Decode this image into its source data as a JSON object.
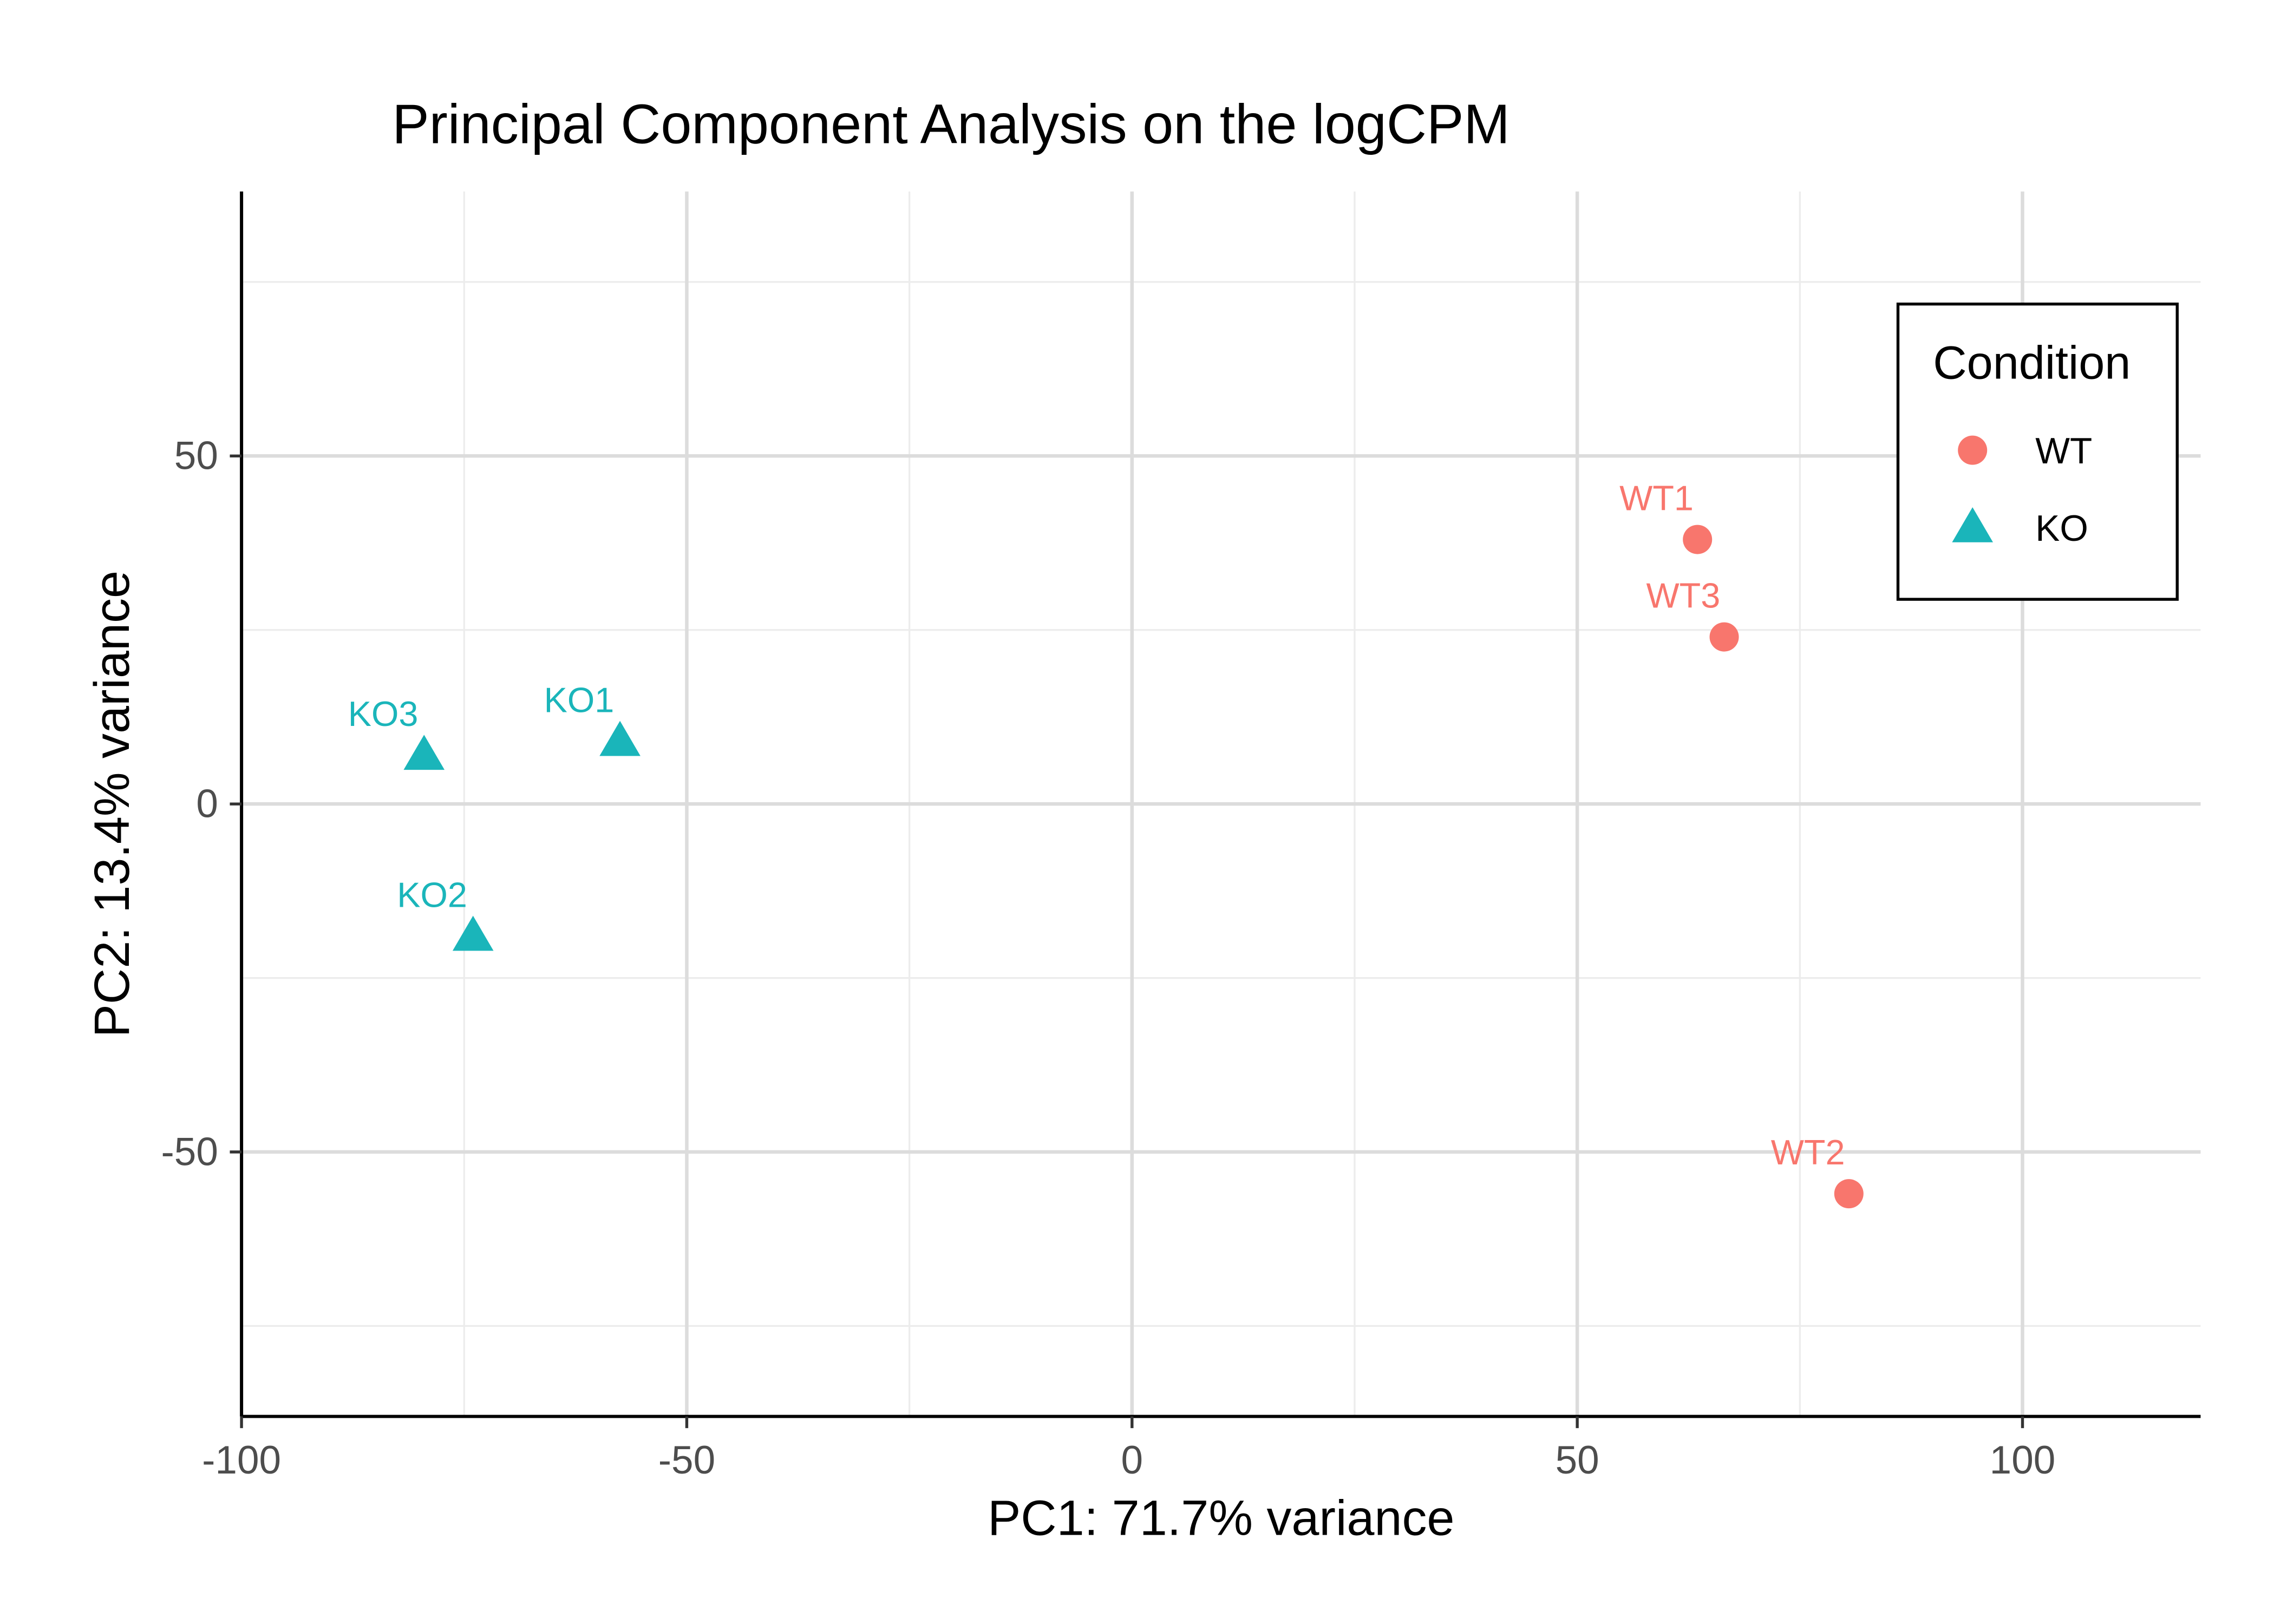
{
  "chart_data": {
    "type": "scatter",
    "title": "Principal Component Analysis on the logCPM",
    "xlabel": "PC1: 71.7% variance",
    "ylabel": "PC2: 13.4% variance",
    "xlim": [
      -100,
      120
    ],
    "ylim": [
      -88,
      88
    ],
    "x_ticks": [
      -100,
      -50,
      0,
      50,
      100
    ],
    "y_ticks": [
      -50,
      0,
      50
    ],
    "x_minor": [
      -75,
      -25,
      25,
      75
    ],
    "y_minor": [
      -75,
      -25,
      25,
      75
    ],
    "grid": true,
    "legend": {
      "title": "Condition",
      "position": "top-right"
    },
    "series": [
      {
        "name": "WT",
        "shape": "circle",
        "color": "#F8766D",
        "points": [
          {
            "label": "WT1",
            "x": 63.5,
            "y": 38
          },
          {
            "label": "WT2",
            "x": 80.5,
            "y": -56
          },
          {
            "label": "WT3",
            "x": 66.5,
            "y": 24
          }
        ]
      },
      {
        "name": "KO",
        "shape": "triangle",
        "color": "#1AB5BA",
        "points": [
          {
            "label": "KO1",
            "x": -57.5,
            "y": 9
          },
          {
            "label": "KO2",
            "x": -74,
            "y": -19
          },
          {
            "label": "KO3",
            "x": -79.5,
            "y": 7
          }
        ]
      }
    ]
  }
}
